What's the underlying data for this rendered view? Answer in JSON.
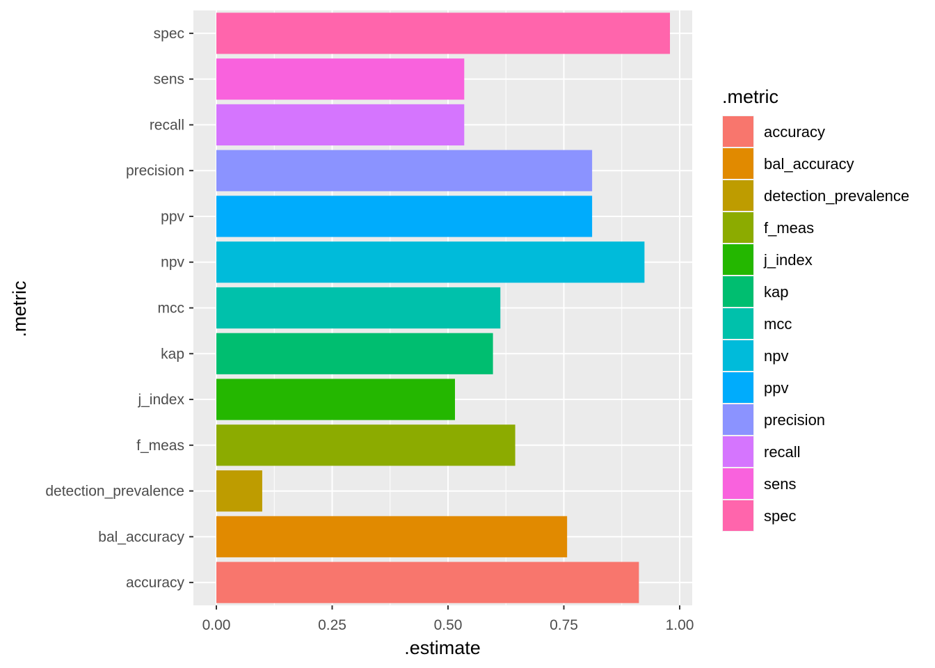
{
  "chart_data": {
    "type": "bar",
    "orientation": "horizontal",
    "categories": [
      "accuracy",
      "bal_accuracy",
      "detection_prevalence",
      "f_meas",
      "j_index",
      "kap",
      "mcc",
      "npv",
      "ppv",
      "precision",
      "recall",
      "sens",
      "spec"
    ],
    "values": [
      0.912,
      0.757,
      0.099,
      0.645,
      0.515,
      0.597,
      0.613,
      0.924,
      0.811,
      0.811,
      0.535,
      0.535,
      0.979
    ],
    "colors": [
      "#F8766D",
      "#E18A00",
      "#BE9C00",
      "#8CAB00",
      "#24B700",
      "#00BE70",
      "#00C1AB",
      "#00BBDA",
      "#00ACFC",
      "#8B93FF",
      "#D575FE",
      "#F962DD",
      "#FF65AC"
    ],
    "xlabel": ".estimate",
    "ylabel": ".metric",
    "xlim": [
      -0.05,
      1.025
    ],
    "x_ticks": [
      "0.00",
      "0.25",
      "0.50",
      "0.75",
      "1.00"
    ],
    "x_tick_values": [
      0,
      0.25,
      0.5,
      0.75,
      1.0
    ],
    "grid": true,
    "panel_background": "#EBEBEB",
    "legend": {
      "title": ".metric",
      "placement": "right",
      "entries": [
        "accuracy",
        "bal_accuracy",
        "detection_prevalence",
        "f_meas",
        "j_index",
        "kap",
        "mcc",
        "npv",
        "ppv",
        "precision",
        "recall",
        "sens",
        "spec"
      ]
    }
  }
}
